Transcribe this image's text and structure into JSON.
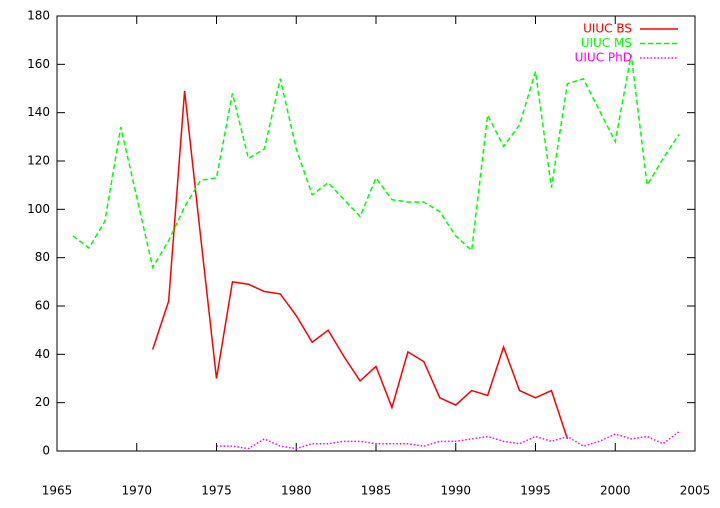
{
  "chart_data": {
    "type": "line",
    "x": [
      1966,
      1967,
      1968,
      1969,
      1970,
      1971,
      1972,
      1973,
      1974,
      1975,
      1976,
      1977,
      1978,
      1979,
      1980,
      1981,
      1982,
      1983,
      1984,
      1985,
      1986,
      1987,
      1988,
      1989,
      1990,
      1991,
      1992,
      1993,
      1994,
      1995,
      1996,
      1997,
      1998,
      1999,
      2000,
      2001,
      2002,
      2003,
      2004
    ],
    "series": [
      {
        "name": "UIUC BS",
        "color": "#ff0000",
        "dash": "solid",
        "values": [
          null,
          null,
          null,
          null,
          null,
          42,
          62,
          149,
          89,
          30,
          70,
          69,
          66,
          65,
          56,
          45,
          50,
          39,
          29,
          35,
          18,
          41,
          37,
          22,
          19,
          25,
          23,
          43,
          25,
          22,
          25,
          5,
          null,
          null,
          null,
          null,
          null,
          null,
          null
        ]
      },
      {
        "name": "UIUC MS",
        "color": "#00ff00",
        "dash": "dashed",
        "values": [
          89,
          84,
          95,
          134,
          105,
          76,
          87,
          101,
          112,
          113,
          148,
          121,
          125,
          154,
          125,
          106,
          111,
          104,
          97,
          113,
          104,
          103,
          103,
          99,
          89,
          83,
          139,
          126,
          135,
          157,
          109,
          152,
          154,
          141,
          128,
          164,
          110,
          121,
          131
        ]
      },
      {
        "name": "UIUC PhD",
        "color": "#ff00ff",
        "dash": "dotted",
        "values": [
          null,
          null,
          null,
          null,
          null,
          null,
          null,
          null,
          null,
          2,
          2,
          1,
          5,
          2,
          1,
          3,
          3,
          4,
          4,
          3,
          3,
          3,
          2,
          4,
          4,
          5,
          6,
          4,
          3,
          6,
          4,
          6,
          2,
          4,
          7,
          5,
          6,
          3,
          8
        ]
      }
    ],
    "xlim": [
      1965,
      2005
    ],
    "xticks": [
      1965,
      1970,
      1975,
      1980,
      1985,
      1990,
      1995,
      2000,
      2005
    ],
    "ylim": [
      0,
      180
    ],
    "yticks": [
      0,
      20,
      40,
      60,
      80,
      100,
      120,
      140,
      160,
      180
    ],
    "legend": "top-right"
  }
}
